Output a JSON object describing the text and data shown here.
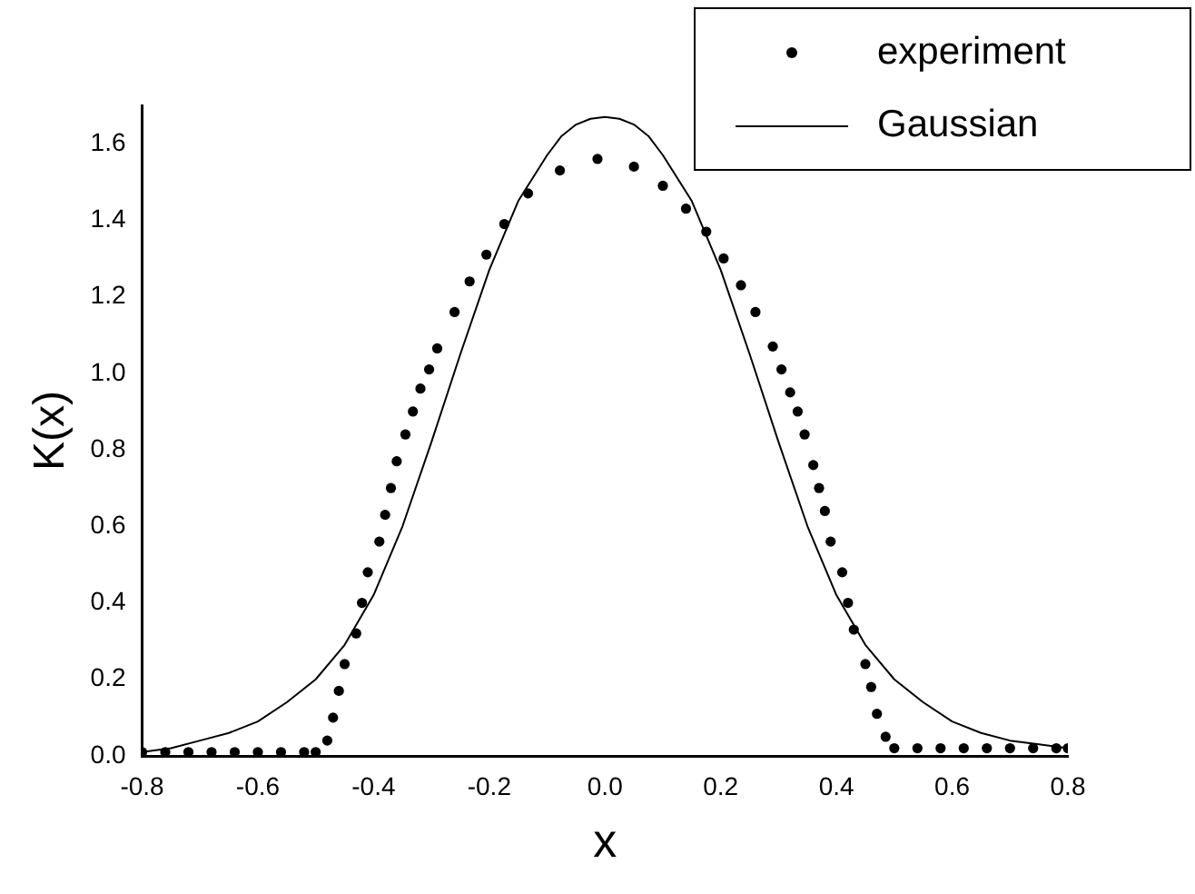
{
  "chart_data": {
    "type": "scatter",
    "xlabel": "x",
    "ylabel": "K(x)",
    "xlim": [
      -0.8,
      0.8
    ],
    "ylim": [
      0,
      1.7
    ],
    "xticks": [
      -0.8,
      -0.6,
      -0.4,
      -0.2,
      {
        "value": 0,
        "label": "0.0"
      },
      0.2,
      0.4,
      0.6,
      0.8
    ],
    "yticks": [
      {
        "value": 0,
        "label": "0.0"
      },
      0.2,
      0.4,
      0.6,
      0.8,
      {
        "value": 1,
        "label": "1.0"
      },
      1.2,
      1.4,
      1.6
    ],
    "grid": false,
    "legend": "top right",
    "series": [
      {
        "name": "experiment",
        "marker": "circle",
        "color": "#000000",
        "x": [
          -0.8,
          -0.76,
          -0.72,
          -0.68,
          -0.64,
          -0.6,
          -0.56,
          -0.52,
          -0.5,
          -0.48,
          -0.47,
          -0.46,
          -0.45,
          -0.43,
          -0.42,
          -0.41,
          -0.39,
          -0.38,
          -0.37,
          -0.36,
          -0.345,
          -0.332,
          -0.319,
          -0.304,
          -0.29,
          -0.26,
          -0.234,
          -0.205,
          -0.174,
          -0.133,
          -0.078,
          -0.013,
          0.05,
          0.1,
          0.14,
          0.175,
          0.205,
          0.235,
          0.26,
          0.29,
          0.305,
          0.32,
          0.333,
          0.345,
          0.36,
          0.37,
          0.38,
          0.39,
          0.41,
          0.42,
          0.43,
          0.45,
          0.46,
          0.47,
          0.485,
          0.5,
          0.54,
          0.58,
          0.62,
          0.66,
          0.7,
          0.74,
          0.78,
          0.8
        ],
        "values": [
          0.01,
          0.01,
          0.01,
          0.01,
          0.01,
          0.01,
          0.01,
          0.01,
          0.01,
          0.04,
          0.1,
          0.17,
          0.24,
          0.32,
          0.4,
          0.48,
          0.56,
          0.63,
          0.7,
          0.77,
          0.84,
          0.9,
          0.96,
          1.01,
          1.065,
          1.16,
          1.24,
          1.31,
          1.39,
          1.47,
          1.53,
          1.56,
          1.54,
          1.49,
          1.43,
          1.37,
          1.3,
          1.23,
          1.16,
          1.07,
          1.01,
          0.95,
          0.9,
          0.84,
          0.76,
          0.7,
          0.64,
          0.56,
          0.48,
          0.4,
          0.33,
          0.24,
          0.18,
          0.11,
          0.05,
          0.02,
          0.02,
          0.02,
          0.02,
          0.02,
          0.02,
          0.02,
          0.02,
          0.02
        ]
      },
      {
        "name": "Gaussian",
        "type": "line",
        "marker": "none",
        "line_style": "solid",
        "color": "#000000",
        "x": [
          -0.8,
          -0.75,
          -0.7,
          -0.65,
          -0.6,
          -0.55,
          -0.5,
          -0.45,
          -0.4,
          -0.35,
          -0.3,
          -0.25,
          -0.2,
          -0.15,
          -0.1,
          -0.075,
          -0.05,
          -0.025,
          0,
          0.025,
          0.05,
          0.075,
          0.1,
          0.15,
          0.2,
          0.25,
          0.3,
          0.35,
          0.4,
          0.45,
          0.5,
          0.55,
          0.6,
          0.65,
          0.7,
          0.75,
          0.8
        ],
        "values": [
          0.01,
          0.02,
          0.04,
          0.06,
          0.09,
          0.14,
          0.2,
          0.29,
          0.42,
          0.6,
          0.82,
          1.05,
          1.27,
          1.45,
          1.57,
          1.62,
          1.65,
          1.665,
          1.67,
          1.665,
          1.65,
          1.62,
          1.57,
          1.45,
          1.27,
          1.05,
          0.82,
          0.6,
          0.42,
          0.29,
          0.2,
          0.14,
          0.09,
          0.06,
          0.04,
          0.03,
          0.02
        ]
      }
    ]
  }
}
